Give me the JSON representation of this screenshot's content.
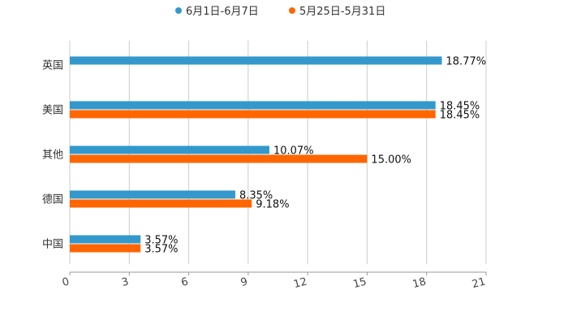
{
  "chart_data": {
    "type": "bar",
    "orientation": "horizontal",
    "categories": [
      "英国",
      "美国",
      "其他",
      "德国",
      "中国"
    ],
    "series": [
      {
        "name": "6月1日-6月7日",
        "color": "#3399cc",
        "values": [
          18.77,
          18.45,
          10.07,
          8.35,
          3.57
        ],
        "labels": [
          "18.77%",
          "18.45%",
          "10.07%",
          "8.35%",
          "3.57%"
        ]
      },
      {
        "name": "5月25日-5月31日",
        "color": "#ff6600",
        "values": [
          null,
          18.45,
          15.0,
          9.18,
          3.57
        ],
        "labels": [
          null,
          "18.45%",
          "15.00%",
          "9.18%",
          "3.57%"
        ]
      }
    ],
    "xlim": [
      0,
      21
    ],
    "xticks": [
      "0",
      "3",
      "6",
      "9",
      "12",
      "15",
      "18",
      "21"
    ],
    "grid": true,
    "legend_position": "top-center"
  }
}
